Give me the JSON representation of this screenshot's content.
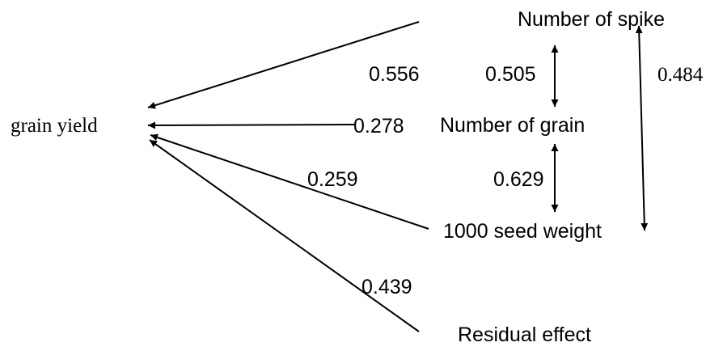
{
  "nodes": {
    "grain_yield": "grain yield",
    "spike": "Number of spike",
    "grain": "Number of grain",
    "seed_weight": "1000 seed weight",
    "residual": "Residual effect"
  },
  "coefficients": {
    "spike_to_yield": "0.556",
    "grain_to_yield": "0.278",
    "seed_weight_to_yield": "0.259",
    "residual_to_yield": "0.439",
    "spike_grain": "0.505",
    "grain_seed_weight": "0.629",
    "spike_seed_weight": "0.484"
  },
  "colors": {
    "line": "#000000",
    "text": "#000000"
  }
}
